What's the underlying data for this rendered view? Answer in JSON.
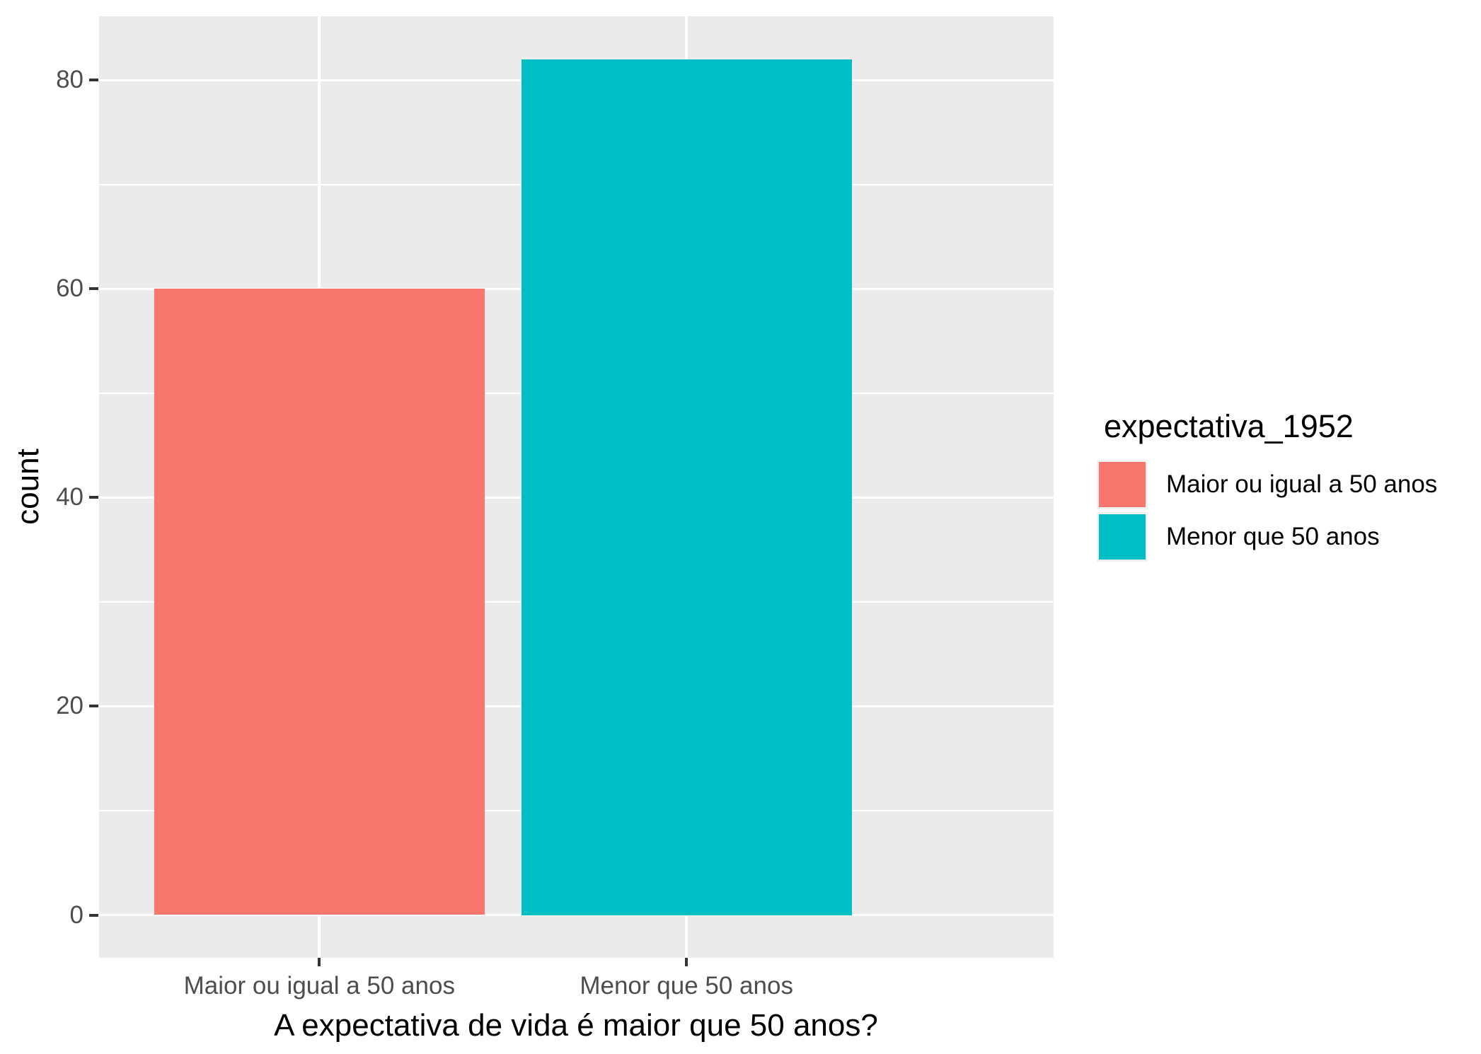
{
  "chart_data": {
    "type": "bar",
    "title": "",
    "categories": [
      "Maior ou igual a 50 anos",
      "Menor que 50 anos"
    ],
    "values": [
      60,
      82
    ],
    "bar_colors": [
      "#F8766D",
      "#00BFC4"
    ],
    "xlabel": "A expectativa de vida é maior que 50 anos?",
    "ylabel": "count",
    "ylim": [
      0,
      82
    ],
    "y_axis_expansion": 0.05,
    "y_major_ticks": [
      0,
      20,
      40,
      60,
      80
    ],
    "y_minor_ticks": [
      10,
      30,
      50,
      70
    ],
    "grid": true,
    "legend": {
      "title": "expectativa_1952",
      "position": "right",
      "entries": [
        {
          "label": "Maior ou igual a 50 anos",
          "color": "#F8766D"
        },
        {
          "label": "Menor que 50 anos",
          "color": "#00BFC4"
        }
      ]
    },
    "theme": {
      "panel_bg": "#EBEBEB",
      "grid_color": "#FFFFFF",
      "axis_text_color": "#4D4D4D",
      "axis_title_color": "#000000",
      "tick_color": "#333333",
      "legend_key_bg": "#F2F2F2",
      "background": "#FFFFFF"
    }
  }
}
